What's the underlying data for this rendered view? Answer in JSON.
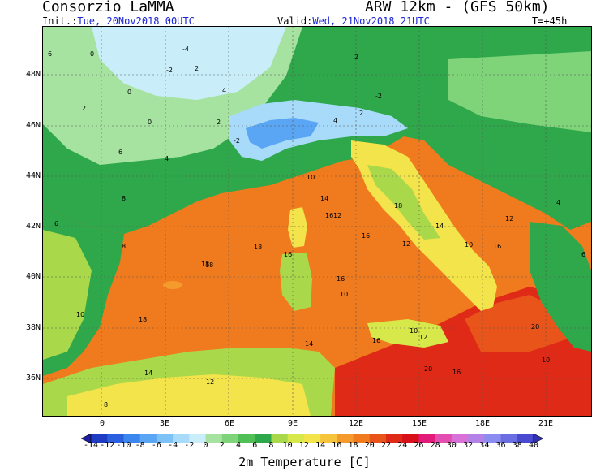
{
  "header": {
    "org": "Consorzio LaMMA",
    "model": "ARW 12km - (GFS 50km)",
    "init_label": "Init.:",
    "init_value": "Tue, 20Nov2018 00UTC",
    "valid_label": "Valid:",
    "valid_value": "Wed, 21Nov2018 21UTC",
    "lead_time": "T=+45h"
  },
  "map": {
    "region": "Western Mediterranean / Italy",
    "lat_labels": [
      "48N",
      "46N",
      "44N",
      "42N",
      "40N",
      "38N",
      "36N"
    ],
    "lon_labels": [
      "0",
      "3E",
      "6E",
      "9E",
      "12E",
      "15E",
      "18E",
      "21E"
    ],
    "sea_color": "#f07a1e",
    "land_color": "#2ea84a",
    "temperature_labels": [
      {
        "t": "6"
      },
      {
        "t": "0"
      },
      {
        "t": "-4"
      },
      {
        "t": "-2"
      },
      {
        "t": "2"
      },
      {
        "t": "0"
      },
      {
        "t": "2"
      },
      {
        "t": "4"
      },
      {
        "t": "0"
      },
      {
        "t": "2"
      },
      {
        "t": "-2"
      },
      {
        "t": "2"
      },
      {
        "t": "2"
      },
      {
        "t": "-2"
      },
      {
        "t": "4"
      },
      {
        "t": "6"
      },
      {
        "t": "4"
      },
      {
        "t": "10"
      },
      {
        "t": "12"
      },
      {
        "t": "14"
      },
      {
        "t": "16"
      },
      {
        "t": "18"
      },
      {
        "t": "16"
      },
      {
        "t": "12"
      },
      {
        "t": "10"
      },
      {
        "t": "8"
      },
      {
        "t": "18"
      },
      {
        "t": "16"
      },
      {
        "t": "10"
      },
      {
        "t": "16"
      },
      {
        "t": "18"
      },
      {
        "t": "18"
      },
      {
        "t": "16"
      },
      {
        "t": "14"
      },
      {
        "t": "12"
      },
      {
        "t": "10"
      },
      {
        "t": "14"
      },
      {
        "t": "12"
      },
      {
        "t": "8"
      },
      {
        "t": "10"
      },
      {
        "t": "16"
      },
      {
        "t": "18"
      },
      {
        "t": "20"
      },
      {
        "t": "6"
      },
      {
        "t": "8"
      },
      {
        "t": "4"
      },
      {
        "t": "6"
      },
      {
        "t": "10"
      },
      {
        "t": "12"
      },
      {
        "t": "14"
      },
      {
        "t": "16"
      },
      {
        "t": "20"
      }
    ]
  },
  "colorbar": {
    "title": "2m Temperature [C]",
    "labels": [
      "-14",
      "-12",
      "-10",
      "-8",
      "-6",
      "-4",
      "-2",
      "0",
      "2",
      "4",
      "6",
      "8",
      "10",
      "12",
      "14",
      "16",
      "18",
      "20",
      "22",
      "24",
      "26",
      "28",
      "30",
      "32",
      "34",
      "36",
      "38",
      "40"
    ],
    "colors": [
      "#1e1e9c",
      "#1f3cc4",
      "#2a5fe0",
      "#3c86f0",
      "#5aa6f5",
      "#7cc2f7",
      "#a7dbf9",
      "#c9eefa",
      "#a6e3a1",
      "#7fd47a",
      "#4fbf56",
      "#2ea84a",
      "#a9d84a",
      "#d6e84a",
      "#f2e44a",
      "#f6c43a",
      "#f59a2c",
      "#f07a1e",
      "#e8541a",
      "#e02a18",
      "#d8101a",
      "#e21b7a",
      "#e24fb0",
      "#d872d8",
      "#b482e6",
      "#8a8cf0",
      "#6a6ee0",
      "#4a4ad0",
      "#3232b0"
    ]
  }
}
